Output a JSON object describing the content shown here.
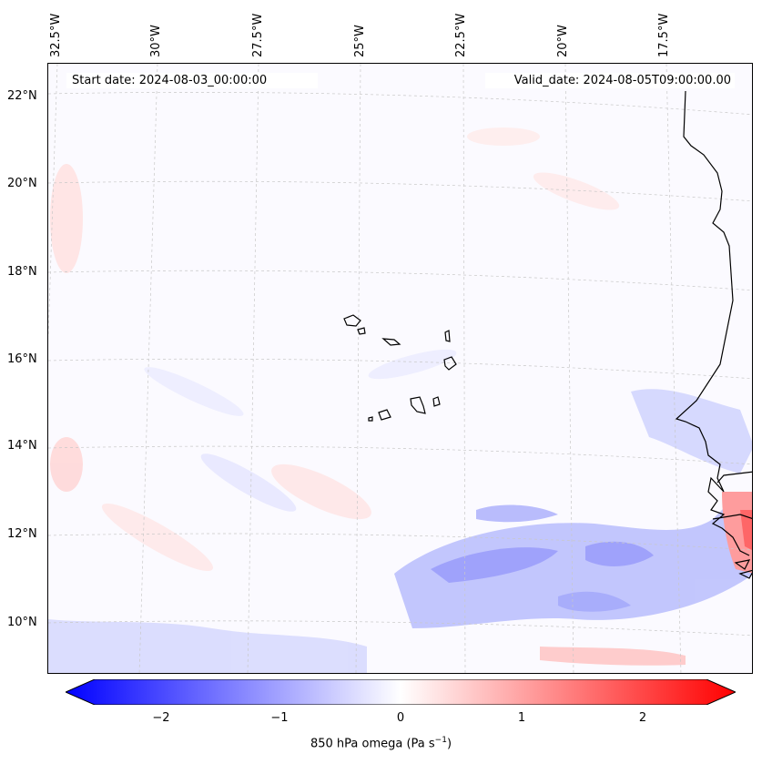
{
  "header": {
    "start_date": "Start date: 2024-08-03_00:00:00",
    "valid_date": "Valid_date: 2024-08-05T09:00:00.00"
  },
  "axes": {
    "lon_labels": [
      "32.5°W",
      "30°W",
      "27.5°W",
      "25°W",
      "22.5°W",
      "20°W",
      "17.5°W"
    ],
    "lat_labels": [
      "22°N",
      "20°N",
      "18°N",
      "16°N",
      "14°N",
      "12°N",
      "10°N"
    ]
  },
  "colorbar": {
    "ticks": [
      "−2",
      "−1",
      "0",
      "1",
      "2"
    ],
    "label_prefix": "850 hPa omega (Pa s",
    "label_exp": "−1",
    "label_suffix": ")",
    "range": [
      -2.75,
      2.75
    ],
    "colormap": "bwr",
    "colors": {
      "min": "#0000ff",
      "mid": "#ffffff",
      "max": "#ff0000"
    }
  },
  "map": {
    "projection": "lambert-conformal",
    "coastline_color": "#000000",
    "gridline_color": "#cccccc",
    "features": [
      "Cape Verde islands",
      "West African coastline (Senegal, Gambia, Guinea-Bissau)"
    ]
  }
}
